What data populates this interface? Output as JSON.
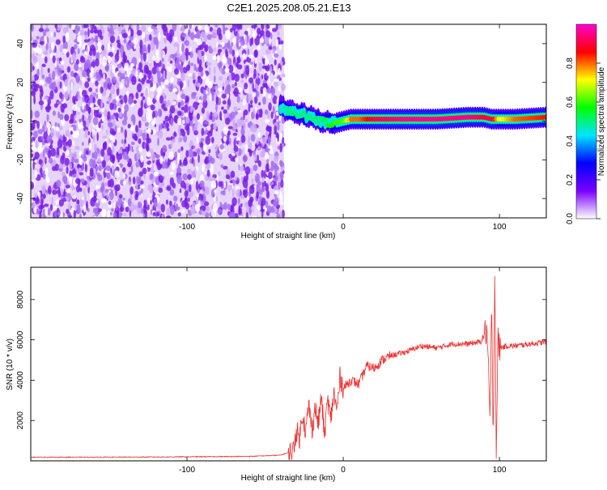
{
  "title": "C2E1.2025.208.05.21.E13",
  "chart_data": [
    {
      "type": "heatmap",
      "xlabel": "Height of straight line (km)",
      "ylabel": "Frequency (Hz)",
      "xlim": [
        -200,
        130
      ],
      "ylim": [
        -50,
        50
      ],
      "x_ticks": [
        -100,
        0,
        100
      ],
      "x_tick_labels": [
        "-100",
        "0",
        "100"
      ],
      "y_ticks": [
        -40,
        -20,
        0,
        20,
        40
      ],
      "y_tick_labels": [
        "-40",
        "-20",
        "0",
        "20",
        "40"
      ],
      "noise_region": {
        "x": [
          -200,
          -38
        ],
        "y": [
          -50,
          50
        ],
        "color": "#7a2ee6"
      },
      "ridge": {
        "x": [
          -40,
          -35,
          -30,
          -25,
          -20,
          -15,
          -10,
          -5,
          0,
          5,
          10,
          20,
          40,
          60,
          80,
          90,
          95,
          100,
          110,
          130
        ],
        "freq": [
          7,
          5,
          4,
          3,
          2,
          0,
          -1,
          -1,
          0,
          1,
          1,
          1,
          1,
          1,
          2,
          2,
          1,
          1,
          1,
          2
        ],
        "amplitude": [
          0.45,
          0.5,
          0.5,
          0.5,
          0.5,
          0.5,
          0.55,
          0.6,
          0.6,
          0.8,
          0.8,
          0.9,
          0.95,
          0.95,
          0.95,
          0.9,
          0.9,
          0.7,
          0.8,
          0.85
        ]
      },
      "colorbar": {
        "label": "Normalized spectral amplitude",
        "range": [
          0,
          1
        ],
        "ticks": [
          0.0,
          0.2,
          0.4,
          0.6,
          0.8
        ],
        "tick_labels": [
          "0.0",
          "0.2",
          "0.4",
          "0.6",
          "0.8"
        ],
        "colors": [
          "#ffffff",
          "#7a00ff",
          "#0000ff",
          "#00e5ff",
          "#00ff00",
          "#ffff00",
          "#ff0000",
          "#ff00cc"
        ]
      },
      "grid": false
    },
    {
      "type": "line",
      "xlabel": "Height of straight line (km)",
      "ylabel": "SNR (10 * v/v)",
      "xlim": [
        -200,
        130
      ],
      "ylim": [
        0,
        9600
      ],
      "x_ticks": [
        -100,
        0,
        100
      ],
      "x_tick_labels": [
        "-100",
        "0",
        "100"
      ],
      "y_ticks": [
        2000,
        4000,
        6000,
        8000
      ],
      "y_tick_labels": [
        "2000",
        "4000",
        "6000",
        "8000"
      ],
      "color": "#ee3333",
      "series": [
        {
          "x": [
            -200,
            -150,
            -100,
            -60,
            -40,
            -32,
            -30,
            -28,
            -26,
            -24,
            -22,
            -20,
            -18,
            -16,
            -14,
            -12,
            -10,
            -8,
            -6,
            -4,
            -2,
            0,
            5,
            10,
            15,
            20,
            25,
            30,
            40,
            50,
            60,
            70,
            80,
            88,
            92,
            94,
            95,
            96,
            97,
            98,
            99,
            100,
            105,
            110,
            120,
            130
          ],
          "y": [
            180,
            180,
            200,
            220,
            280,
            500,
            1500,
            1100,
            2400,
            1400,
            2800,
            1500,
            2700,
            1800,
            3200,
            1200,
            3100,
            2000,
            3400,
            2400,
            4200,
            3600,
            4000,
            3800,
            4700,
            4600,
            5000,
            5200,
            5400,
            5700,
            5600,
            5800,
            5800,
            5900,
            6500,
            2000,
            7500,
            1200,
            9500,
            300,
            6000,
            5600,
            5700,
            5700,
            5800,
            5900
          ]
        }
      ],
      "grid": false
    }
  ]
}
